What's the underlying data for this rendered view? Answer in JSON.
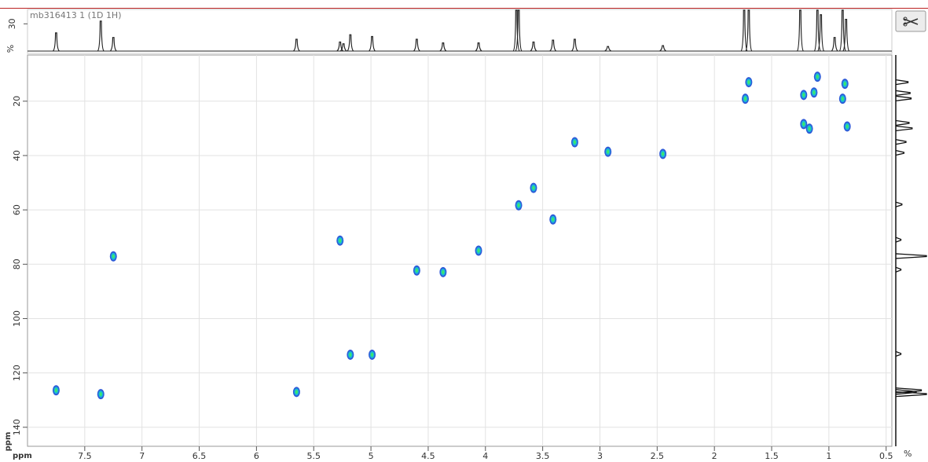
{
  "chart_data": {
    "type": "hsqc",
    "title": "mb316413 1 (1D 1H)",
    "x_label": "ppm",
    "y_label": "ppm",
    "xlim": [
      8.0,
      0.45
    ],
    "xticks": [
      7.5,
      7,
      6.5,
      6,
      5.5,
      5,
      4.5,
      4,
      3.5,
      3,
      2.5,
      2,
      1.5,
      1,
      0.5
    ],
    "ylim": [
      3,
      147
    ],
    "yticks": [
      20,
      40,
      60,
      80,
      100,
      120,
      140
    ],
    "grid": true,
    "contour_colors": [
      "#2d5bd8",
      "#19b8d8",
      "#3ee86a"
    ],
    "peaks": {
      "h": [
        7.75,
        7.36,
        7.25,
        5.65,
        5.27,
        5.18,
        4.99,
        4.6,
        4.37,
        4.06,
        3.71,
        3.58,
        3.41,
        3.22,
        2.93,
        2.45,
        1.73,
        1.7,
        1.1,
        1.13,
        1.22,
        0.86,
        0.88,
        1.22,
        1.17,
        0.84
      ],
      "c": [
        126.4,
        127.8,
        77.1,
        127.0,
        71.3,
        113.3,
        113.3,
        82.3,
        82.9,
        75.0,
        58.3,
        51.9,
        63.5,
        35.1,
        38.6,
        39.4,
        19.1,
        13.0,
        11.0,
        16.8,
        17.7,
        13.6,
        19.1,
        28.4,
        30.1,
        29.3
      ]
    },
    "proton_trace": {
      "unit_label": "%",
      "ylim": [
        0,
        45
      ],
      "yticks": [
        30
      ],
      "color": "#222222",
      "ppm": [
        7.75,
        7.36,
        7.25,
        5.65,
        5.27,
        5.24,
        5.18,
        4.99,
        4.6,
        4.37,
        4.06,
        3.73,
        3.71,
        3.58,
        3.41,
        3.22,
        2.93,
        2.45,
        1.74,
        1.7,
        1.25,
        1.1,
        1.07,
        0.95,
        0.88,
        0.85
      ],
      "height": [
        20,
        33,
        15,
        13,
        10,
        8,
        18,
        16,
        13,
        9,
        9,
        45,
        45,
        10,
        12,
        13,
        5,
        6,
        45,
        45,
        45,
        45,
        40,
        15,
        45,
        35
      ]
    },
    "carbon_trace": {
      "unit_label": "%",
      "color": "#111111",
      "ppm": [
        13,
        17,
        19,
        28,
        30,
        35,
        39,
        58,
        71,
        77,
        82,
        113,
        126.4,
        127,
        127.8
      ],
      "height": [
        12,
        14,
        15,
        13,
        16,
        10,
        8,
        6,
        5,
        30,
        5,
        5,
        25,
        20,
        30
      ]
    }
  }
}
